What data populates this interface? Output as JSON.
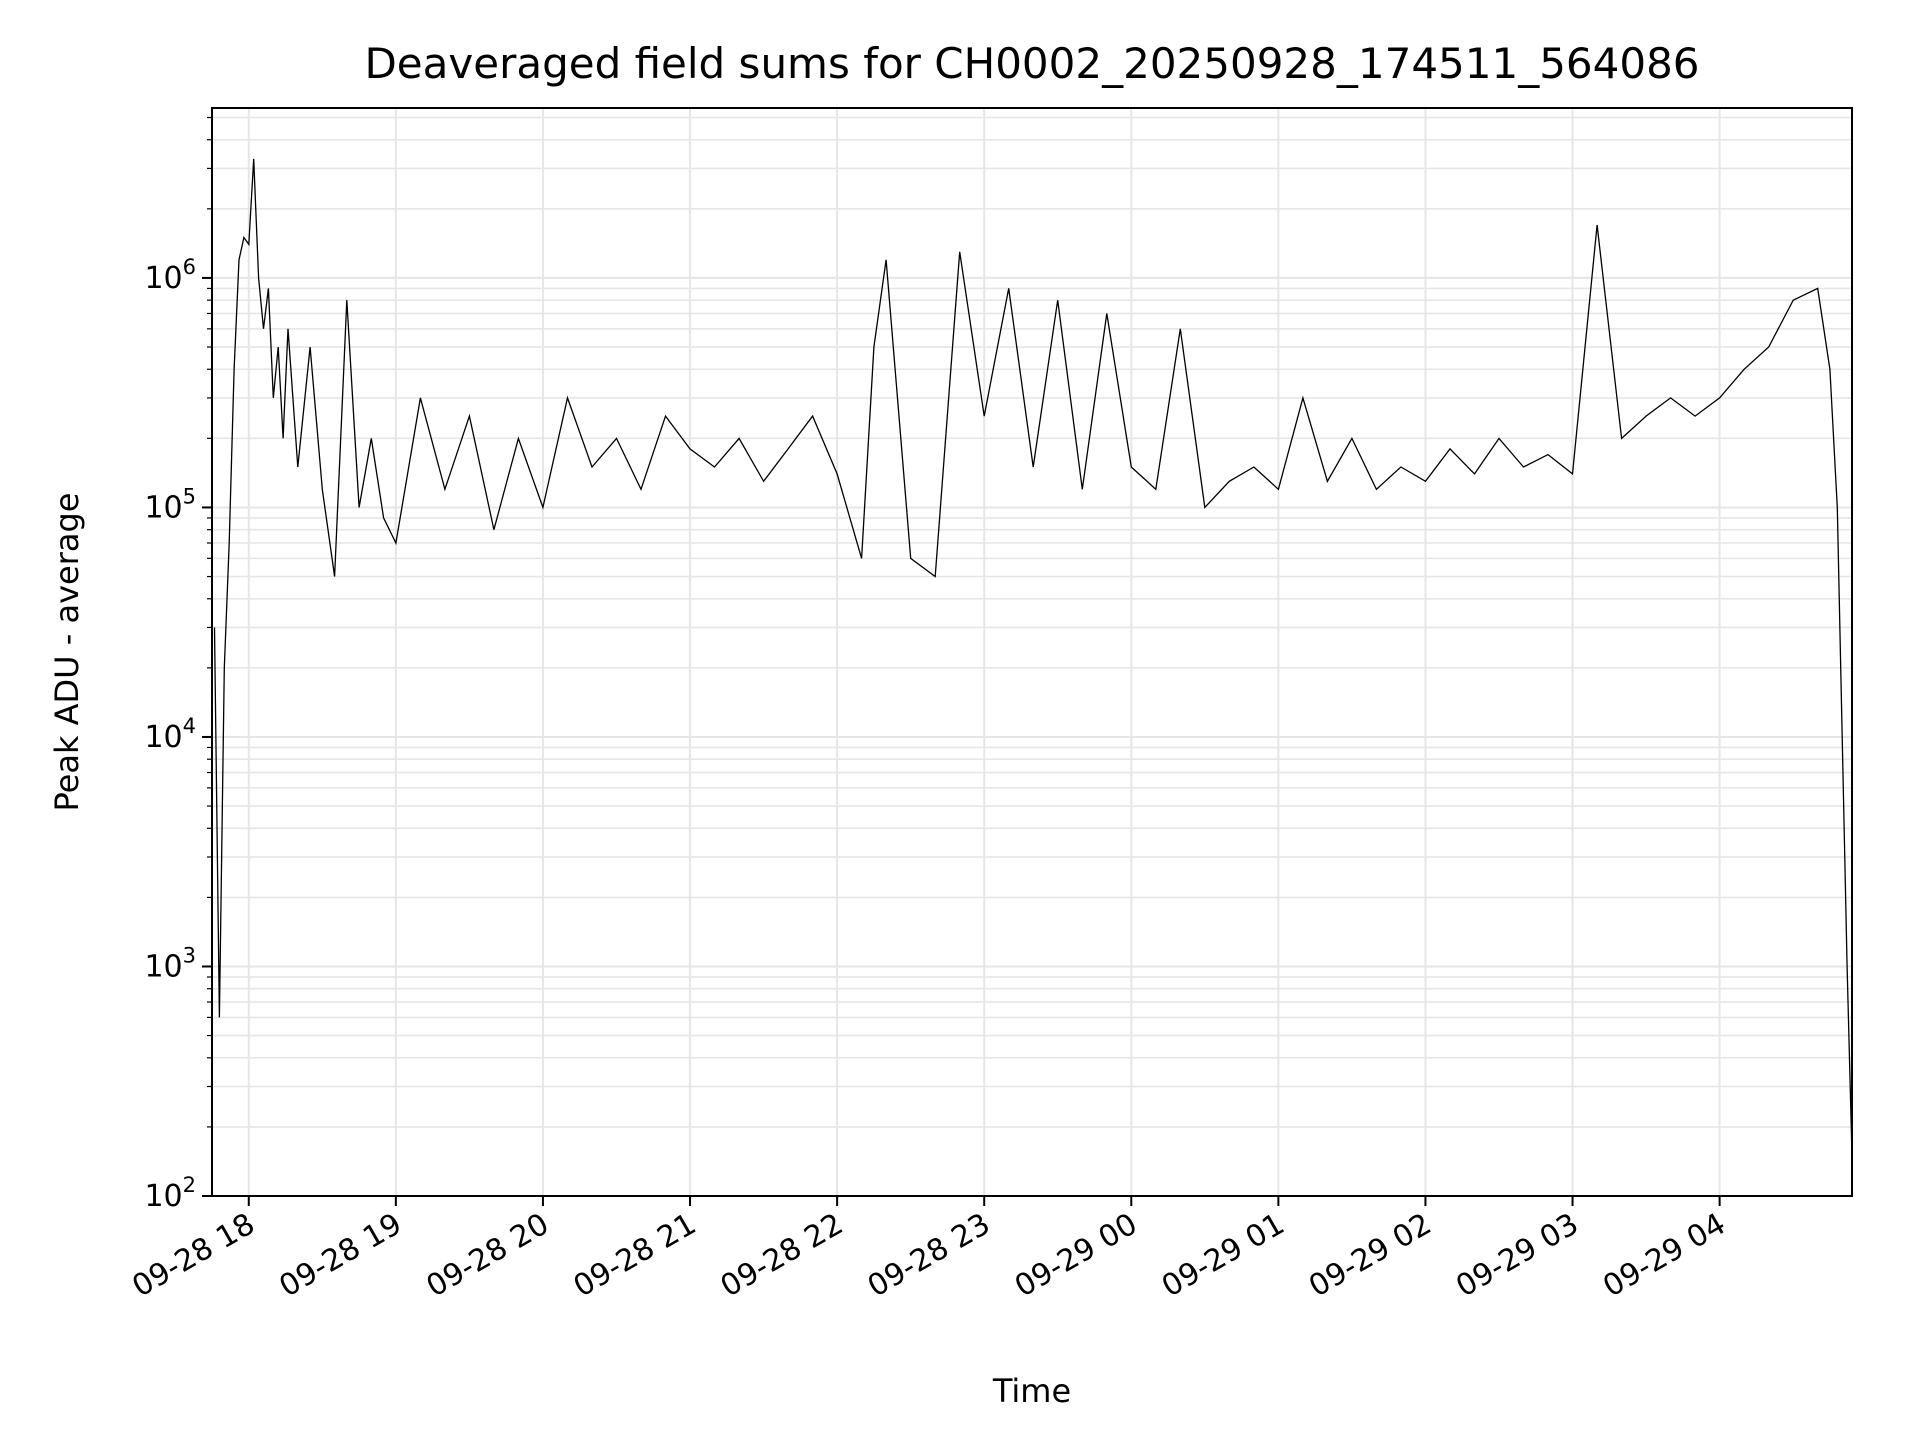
{
  "chart_data": {
    "type": "line",
    "title": "Deaveraged field sums for CH0002_20250928_174511_564086",
    "xlabel": "Time",
    "ylabel": "Peak ADU - average",
    "y_scale": "log",
    "ylim": [
      100,
      5500000
    ],
    "xlim": [
      "2025-09-28 17:45",
      "2025-09-29 04:54"
    ],
    "grid": true,
    "line_color": "#000000",
    "grid_color": "#e6e6e6",
    "y_ticks": [
      {
        "value": 100,
        "base": "10",
        "exp": "2"
      },
      {
        "value": 1000,
        "base": "10",
        "exp": "3"
      },
      {
        "value": 10000,
        "base": "10",
        "exp": "4"
      },
      {
        "value": 100000,
        "base": "10",
        "exp": "5"
      },
      {
        "value": 1000000,
        "base": "10",
        "exp": "6"
      }
    ],
    "x_ticks": [
      {
        "value": "2025-09-28 18:00",
        "label": "09-28 18"
      },
      {
        "value": "2025-09-28 19:00",
        "label": "09-28 19"
      },
      {
        "value": "2025-09-28 20:00",
        "label": "09-28 20"
      },
      {
        "value": "2025-09-28 21:00",
        "label": "09-28 21"
      },
      {
        "value": "2025-09-28 22:00",
        "label": "09-28 22"
      },
      {
        "value": "2025-09-28 23:00",
        "label": "09-28 23"
      },
      {
        "value": "2025-09-29 00:00",
        "label": "09-29 00"
      },
      {
        "value": "2025-09-29 01:00",
        "label": "09-29 01"
      },
      {
        "value": "2025-09-29 02:00",
        "label": "09-29 02"
      },
      {
        "value": "2025-09-29 03:00",
        "label": "09-29 03"
      },
      {
        "value": "2025-09-29 04:00",
        "label": "09-29 04"
      }
    ],
    "series": [
      {
        "x": [
          "2025-09-28 17:46",
          "2025-09-28 17:48",
          "2025-09-28 17:50",
          "2025-09-28 17:52",
          "2025-09-28 17:54",
          "2025-09-28 17:56",
          "2025-09-28 17:58",
          "2025-09-28 18:00",
          "2025-09-28 18:02",
          "2025-09-28 18:04",
          "2025-09-28 18:06",
          "2025-09-28 18:08",
          "2025-09-28 18:10",
          "2025-09-28 18:12",
          "2025-09-28 18:14",
          "2025-09-28 18:16",
          "2025-09-28 18:18",
          "2025-09-28 18:20",
          "2025-09-28 18:25",
          "2025-09-28 18:30",
          "2025-09-28 18:35",
          "2025-09-28 18:40",
          "2025-09-28 18:45",
          "2025-09-28 18:50",
          "2025-09-28 18:55",
          "2025-09-28 19:00",
          "2025-09-28 19:10",
          "2025-09-28 19:20",
          "2025-09-28 19:30",
          "2025-09-28 19:40",
          "2025-09-28 19:50",
          "2025-09-28 20:00",
          "2025-09-28 20:10",
          "2025-09-28 20:20",
          "2025-09-28 20:30",
          "2025-09-28 20:40",
          "2025-09-28 20:50",
          "2025-09-28 21:00",
          "2025-09-28 21:10",
          "2025-09-28 21:20",
          "2025-09-28 21:30",
          "2025-09-28 21:40",
          "2025-09-28 21:50",
          "2025-09-28 22:00",
          "2025-09-28 22:10",
          "2025-09-28 22:15",
          "2025-09-28 22:20",
          "2025-09-28 22:30",
          "2025-09-28 22:40",
          "2025-09-28 22:50",
          "2025-09-28 23:00",
          "2025-09-28 23:10",
          "2025-09-28 23:20",
          "2025-09-28 23:30",
          "2025-09-28 23:40",
          "2025-09-28 23:50",
          "2025-09-29 00:00",
          "2025-09-29 00:10",
          "2025-09-29 00:20",
          "2025-09-29 00:30",
          "2025-09-29 00:40",
          "2025-09-29 00:50",
          "2025-09-29 01:00",
          "2025-09-29 01:10",
          "2025-09-29 01:20",
          "2025-09-29 01:30",
          "2025-09-29 01:40",
          "2025-09-29 01:50",
          "2025-09-29 02:00",
          "2025-09-29 02:10",
          "2025-09-29 02:20",
          "2025-09-29 02:30",
          "2025-09-29 02:40",
          "2025-09-29 02:50",
          "2025-09-29 03:00",
          "2025-09-29 03:10",
          "2025-09-29 03:20",
          "2025-09-29 03:30",
          "2025-09-29 03:40",
          "2025-09-29 03:50",
          "2025-09-29 04:00",
          "2025-09-29 04:10",
          "2025-09-29 04:20",
          "2025-09-29 04:30",
          "2025-09-29 04:40",
          "2025-09-29 04:45",
          "2025-09-29 04:48",
          "2025-09-29 04:50",
          "2025-09-29 04:52",
          "2025-09-29 04:54"
        ],
        "y": [
          30000,
          600,
          20000,
          70000,
          400000,
          1200000,
          1500000,
          1400000,
          3300000,
          1000000,
          600000,
          900000,
          300000,
          500000,
          200000,
          600000,
          300000,
          150000,
          500000,
          120000,
          50000,
          800000,
          100000,
          200000,
          90000,
          70000,
          300000,
          120000,
          250000,
          80000,
          200000,
          100000,
          300000,
          150000,
          200000,
          120000,
          250000,
          180000,
          150000,
          200000,
          130000,
          180000,
          250000,
          140000,
          60000,
          500000,
          1200000,
          60000,
          50000,
          1300000,
          250000,
          900000,
          150000,
          800000,
          120000,
          700000,
          150000,
          120000,
          600000,
          100000,
          130000,
          150000,
          120000,
          300000,
          130000,
          200000,
          120000,
          150000,
          130000,
          180000,
          140000,
          200000,
          150000,
          170000,
          140000,
          1700000,
          200000,
          250000,
          300000,
          250000,
          300000,
          400000,
          500000,
          800000,
          900000,
          400000,
          100000,
          10000,
          1000,
          150
        ]
      }
    ]
  }
}
